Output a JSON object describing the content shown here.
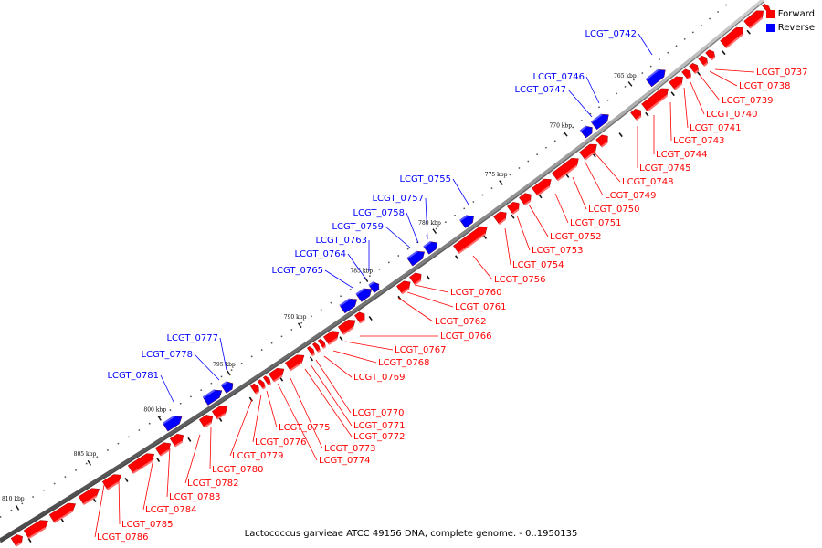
{
  "legend": {
    "forward_label": "Forward",
    "reverse_label": "Reverse",
    "forward_color": "#ff0000",
    "reverse_color": "#0000ff"
  },
  "caption": "Lactococcus garvieae ATCC 49156 DNA, complete genome. - 0..1950135",
  "ticks": [
    {
      "label": "765 kbp",
      "kbp": 765
    },
    {
      "label": "770 kbp",
      "kbp": 770
    },
    {
      "label": "775 kbp",
      "kbp": 775
    },
    {
      "label": "780 kbp",
      "kbp": 780
    },
    {
      "label": "785 kbp",
      "kbp": 785
    },
    {
      "label": "790 kbp",
      "kbp": 790
    },
    {
      "label": "795 kbp",
      "kbp": 795
    },
    {
      "label": "800 kbp",
      "kbp": 800
    },
    {
      "label": "805 kbp",
      "kbp": 805
    },
    {
      "label": "810 kbp",
      "kbp": 810
    }
  ],
  "genes_reverse": [
    "LCGT_0742",
    "LCGT_0746",
    "LCGT_0747",
    "LCGT_0755",
    "LCGT_0757",
    "LCGT_0758",
    "LCGT_0759",
    "LCGT_0763",
    "LCGT_0764",
    "LCGT_0765",
    "LCGT_0777",
    "LCGT_0778",
    "LCGT_0781"
  ],
  "genes_forward": [
    "LCGT_0737",
    "LCGT_0738",
    "LCGT_0739",
    "LCGT_0740",
    "LCGT_0741",
    "LCGT_0743",
    "LCGT_0744",
    "LCGT_0745",
    "LCGT_0748",
    "LCGT_0749",
    "LCGT_0750",
    "LCGT_0751",
    "LCGT_0752",
    "LCGT_0753",
    "LCGT_0754",
    "LCGT_0756",
    "LCGT_0760",
    "LCGT_0761",
    "LCGT_0762",
    "LCGT_0766",
    "LCGT_0767",
    "LCGT_0768",
    "LCGT_0769",
    "LCGT_0770",
    "LCGT_0771",
    "LCGT_0772",
    "LCGT_0773",
    "LCGT_0774",
    "LCGT_0775",
    "LCGT_0776",
    "LCGT_0779",
    "LCGT_0780",
    "LCGT_0782",
    "LCGT_0783",
    "LCGT_0784",
    "LCGT_0785",
    "LCGT_0786"
  ]
}
